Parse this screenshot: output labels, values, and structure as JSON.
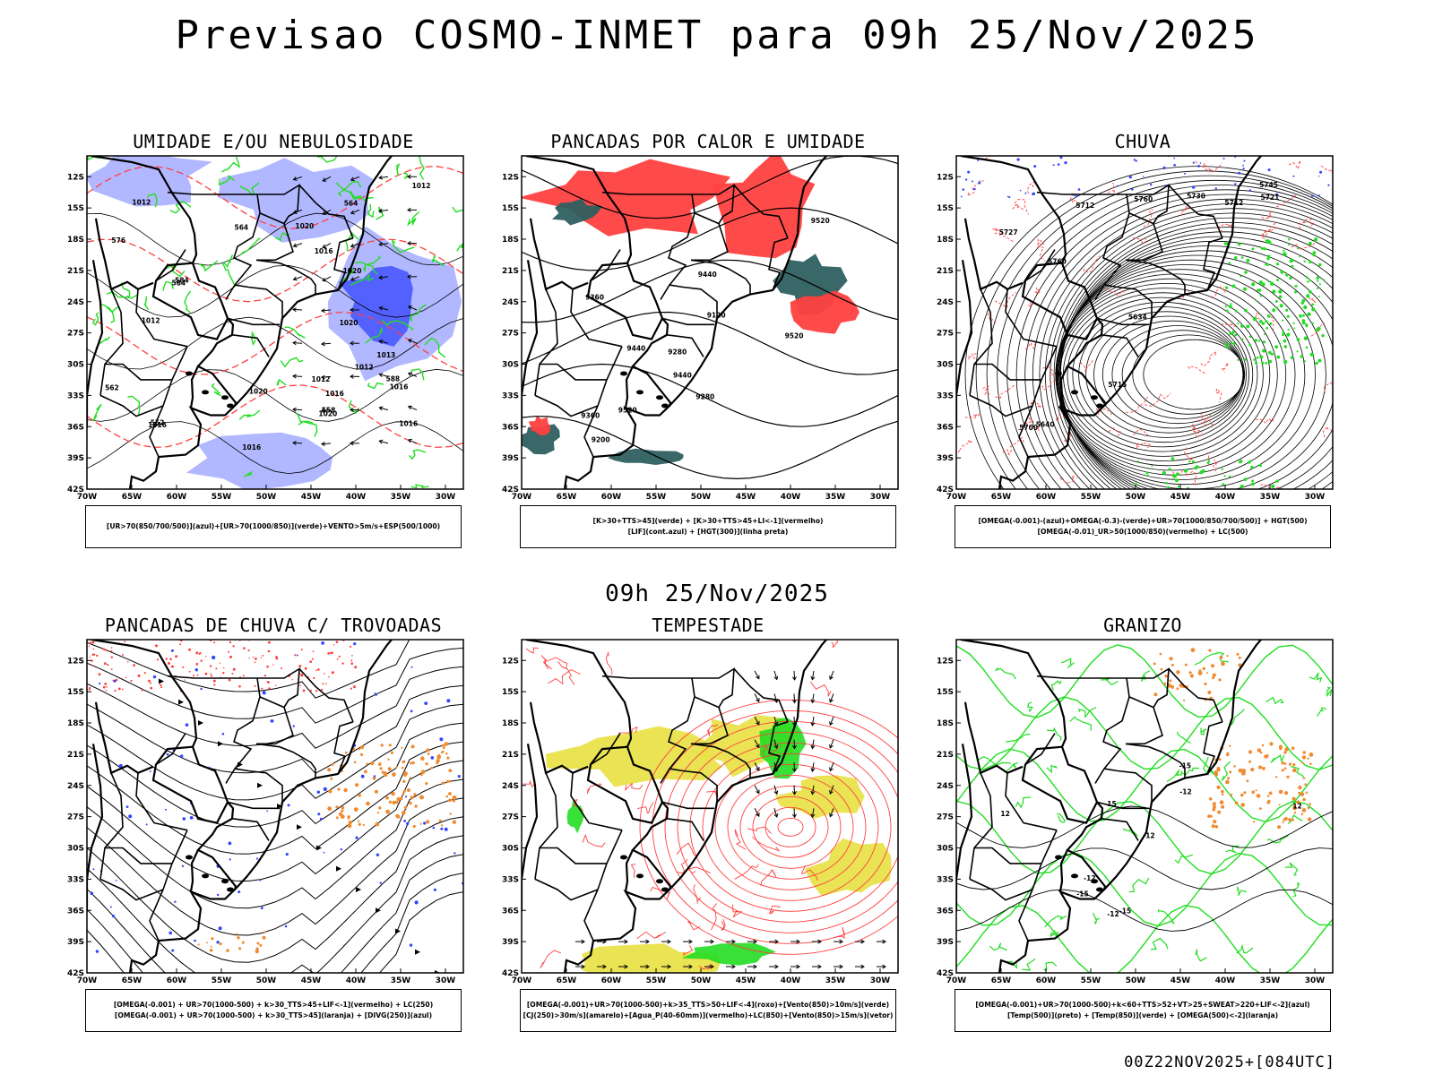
{
  "title": "Previsao COSMO-INMET  para 09h 25/Nov/2025",
  "mid_title": "09h 25/Nov/2025",
  "footer": "00Z22NOV2025+[084UTC]",
  "axes": {
    "lat_labels": [
      "12S",
      "15S",
      "18S",
      "21S",
      "24S",
      "27S",
      "30S",
      "33S",
      "36S",
      "39S",
      "42S"
    ],
    "lon_labels": [
      "70W",
      "65W",
      "60W",
      "55W",
      "50W",
      "45W",
      "40W",
      "35W",
      "30W"
    ]
  },
  "colors": {
    "red": "#ff4040",
    "green": "#22dd22",
    "blue": "#3344ff",
    "lavender": "#aab0ff",
    "teal": "#2f5f5f",
    "yellow": "#e8e040",
    "orange": "#f08a30",
    "black": "#000000"
  },
  "chart_data": [
    {
      "type": "heatmap",
      "title": "UMIDADE E/OU NEBULOSIDADE",
      "legend": [
        "[UR>70(850/700/500)](azul)+[UR>70(1000/850)](verde)+VENTO>5m/s+ESP(500/1000)"
      ],
      "xlim": [
        -70,
        -28
      ],
      "ylim": [
        -42,
        -10
      ],
      "contour_labels": [
        "1012",
        "1012",
        "1016",
        "1013",
        "1012",
        "1020",
        "1016",
        "1012",
        "1016",
        "1020",
        "1016",
        "1020",
        "1016",
        "1020",
        "1012",
        "1020",
        "1016",
        "584",
        "552",
        "584",
        "588",
        "564",
        "558",
        "562",
        "564",
        "576"
      ]
    },
    {
      "type": "heatmap",
      "title": "PANCADAS POR CALOR E UMIDADE",
      "legend": [
        "[K>30+TTS>45](verde) + [K>30+TTS>45+LI<-1](vermelho)",
        "[LIF](cont.azul) + [HGT(300)](linha preta)"
      ],
      "xlim": [
        -70,
        -28
      ],
      "ylim": [
        -42,
        -10
      ],
      "contour_labels": [
        "9520",
        "9520",
        "9520",
        "9440",
        "9440",
        "9440",
        "9360",
        "9280",
        "9360",
        "9200",
        "9280",
        "9120"
      ]
    },
    {
      "type": "heatmap",
      "title": "CHUVA",
      "legend": [
        "[OMEGA(-0.001)-(azul)+OMEGA(-0.3)-(verde)+UR>70(1000/850/700/500)] + HGT(500)",
        "[OMEGA(-0.01)_UR>50(1000/850)(vermelho) + LC(500)"
      ],
      "xlim": [
        -70,
        -28
      ],
      "ylim": [
        -42,
        -10
      ],
      "contour_labels": [
        "5760",
        "5760",
        "5745",
        "5730",
        "5727",
        "5712",
        "5715",
        "5700",
        "5640",
        "5634",
        "5712",
        "5721"
      ]
    },
    {
      "type": "heatmap",
      "title": "PANCADAS DE CHUVA C/ TROVOADAS",
      "legend": [
        "[OMEGA(-0.001) + UR>70(1000-500) + k>30_TTS>45+LIF<-1](vermelho) + LC(250)",
        "[OMEGA(-0.001) + UR>70(1000-500) + k>30_TTS>45](laranja) + [DIVG(250)](azul)"
      ],
      "xlim": [
        -70,
        -28
      ],
      "ylim": [
        -42,
        -10
      ],
      "contour_labels": []
    },
    {
      "type": "heatmap",
      "title": "TEMPESTADE",
      "legend": [
        "[OMEGA(-0.001)+UR>70(1000-500)+k>35_TTS>50+LIF<-4](roxo)+[Vento(850)>10m/s](verde)",
        "[CJ(250)>30m/s](amarelo)+[Agua_P(40-60mm)](vermelho)+LC(850)+[Vento(850)>15m/s](vetor)"
      ],
      "xlim": [
        -70,
        -28
      ],
      "ylim": [
        -42,
        -10
      ],
      "contour_labels": []
    },
    {
      "type": "heatmap",
      "title": "GRANIZO",
      "legend": [
        "[OMEGA(-0.001)+UR>70(1000-500)+k<60+TTS>52+VT>25+SWEAT>220+LIF<-2](azul)",
        "[Temp(500)](preto) + [Temp(850)](verde) + [OMEGA(500)<-2](laranja)"
      ],
      "xlim": [
        -70,
        -28
      ],
      "ylim": [
        -42,
        -10
      ],
      "contour_labels": [
        "-12",
        "-12",
        "-12",
        "-15",
        "-15",
        "-15",
        "-12",
        "-15",
        "12",
        "12"
      ]
    }
  ]
}
